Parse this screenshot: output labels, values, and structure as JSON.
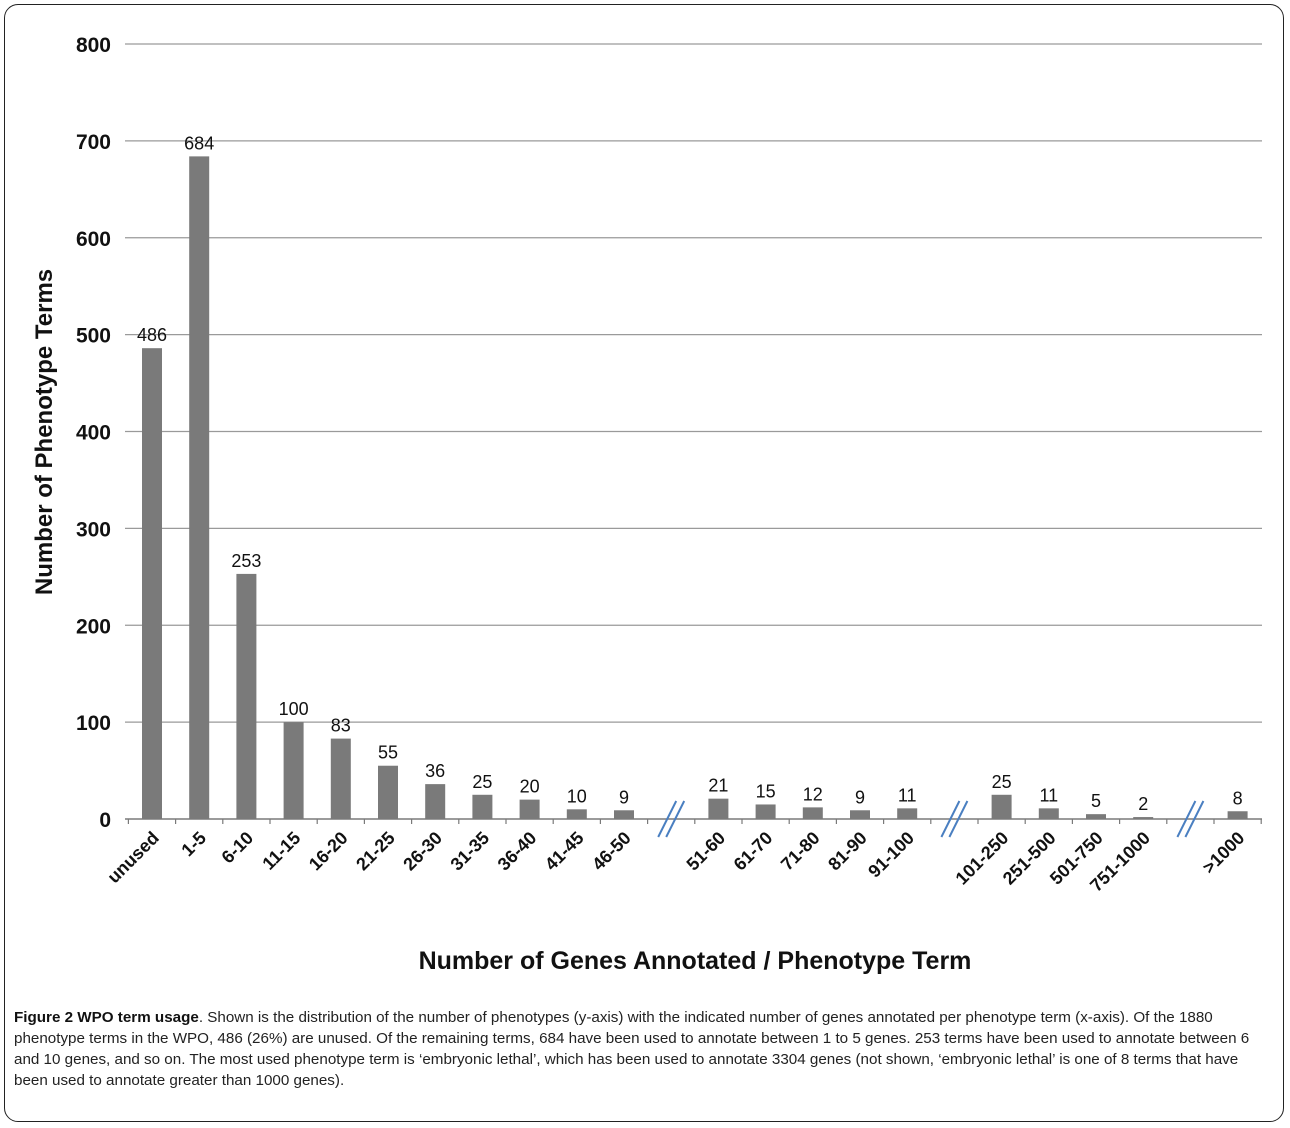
{
  "chart_data": {
    "type": "bar",
    "categories": [
      "unused",
      "1-5",
      "6-10",
      "11-15",
      "16-20",
      "21-25",
      "26-30",
      "31-35",
      "36-40",
      "41-45",
      "46-50",
      "51-60",
      "61-70",
      "71-80",
      "81-90",
      "91-100",
      "101-250",
      "251-500",
      "501-750",
      "751-1000",
      ">1000"
    ],
    "values": [
      486,
      684,
      253,
      100,
      83,
      55,
      36,
      25,
      20,
      10,
      9,
      21,
      15,
      12,
      9,
      11,
      25,
      11,
      5,
      2,
      8
    ],
    "xlabel": "Number of Genes Annotated /  Phenotype Term",
    "ylabel": "Number of Phenotype Terms",
    "ylim": [
      0,
      800
    ],
    "yticks": [
      0,
      100,
      200,
      300,
      400,
      500,
      600,
      700,
      800
    ],
    "axis_breaks_after": [
      "46-50",
      "91-100",
      "751-1000"
    ],
    "grid": true,
    "bar_color": "#7a7a7a",
    "break_mark_color": "#4a7fc1"
  },
  "caption": {
    "label": "Figure 2 WPO term usage",
    "text": ". Shown is the distribution of the number of phenotypes (y-axis) with the indicated number of genes annotated per phenotype term (x-axis). Of the 1880 phenotype terms in the WPO, 486 (26%) are unused. Of the remaining terms, 684 have been used to annotate between 1 to 5 genes. 253 terms have been used to annotate between 6 and 10 genes, and so on. The most used phenotype term is ‘embryonic lethal’, which has been used to annotate 3304 genes (not shown, ‘embryonic lethal’ is one of 8 terms that have been used to annotate greater than 1000 genes)."
  }
}
